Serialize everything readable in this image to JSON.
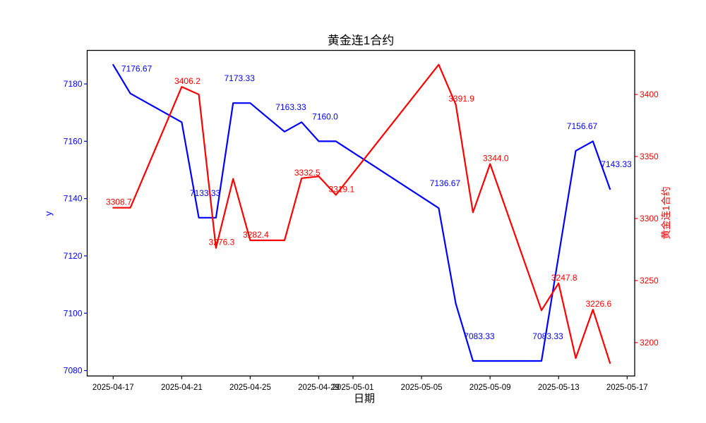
{
  "chart_data": {
    "type": "line",
    "title": "黄金连1合约",
    "xlabel": "日期",
    "grid": false,
    "legend_position": "none",
    "x_tick_labels": [
      "2025-04-17",
      "2025-04-21",
      "2025-04-25",
      "2025-04-29",
      "2025-05-01",
      "2025-05-05",
      "2025-05-09",
      "2025-05-13",
      "2025-05-17"
    ],
    "left_axis": {
      "label": "y",
      "color": "#0000ff",
      "ticks": [
        7180,
        7160,
        7140,
        7120,
        7100,
        7080
      ],
      "range": [
        7078.1,
        7191.7
      ]
    },
    "right_axis": {
      "label": "黄金连1合约",
      "color": "#ff0000",
      "ticks": [
        3400,
        3350,
        3300,
        3250,
        3200
      ],
      "range": [
        3173.1,
        3435.5
      ]
    },
    "series": [
      {
        "name": "y",
        "axis": "left",
        "color": "#0000ff",
        "points": [
          {
            "date": "2025-04-17",
            "value": 7186.67,
            "label": null
          },
          {
            "date": "2025-04-18",
            "value": 7176.67,
            "label": "7176.67"
          },
          {
            "date": "2025-04-21",
            "value": 7166.67,
            "label": null
          },
          {
            "date": "2025-04-22",
            "value": 7133.33,
            "label": "7133.33"
          },
          {
            "date": "2025-04-23",
            "value": 7133.33,
            "label": null
          },
          {
            "date": "2025-04-24",
            "value": 7173.33,
            "label": "7173.33"
          },
          {
            "date": "2025-04-25",
            "value": 7173.33,
            "label": null
          },
          {
            "date": "2025-04-27",
            "value": 7163.33,
            "label": "7163.33"
          },
          {
            "date": "2025-04-28",
            "value": 7166.67,
            "label": null
          },
          {
            "date": "2025-04-29",
            "value": 7160.0,
            "label": "7160.0"
          },
          {
            "date": "2025-04-30",
            "value": 7160.0,
            "label": null
          },
          {
            "date": "2025-05-06",
            "value": 7136.67,
            "label": "7136.67"
          },
          {
            "date": "2025-05-07",
            "value": 7103.33,
            "label": null
          },
          {
            "date": "2025-05-08",
            "value": 7083.33,
            "label": "7083.33"
          },
          {
            "date": "2025-05-09",
            "value": 7083.33,
            "label": null
          },
          {
            "date": "2025-05-12",
            "value": 7083.33,
            "label": "7083.33"
          },
          {
            "date": "2025-05-13",
            "value": 7120.0,
            "label": null
          },
          {
            "date": "2025-05-14",
            "value": 7156.67,
            "label": "7156.67"
          },
          {
            "date": "2025-05-15",
            "value": 7160.0,
            "label": null
          },
          {
            "date": "2025-05-16",
            "value": 7143.33,
            "label": "7143.33"
          }
        ]
      },
      {
        "name": "黄金连1合约",
        "axis": "right",
        "color": "#ff0000",
        "points": [
          {
            "date": "2025-04-17",
            "value": 3308.7,
            "label": "3308.7"
          },
          {
            "date": "2025-04-18",
            "value": 3308.7,
            "label": null
          },
          {
            "date": "2025-04-21",
            "value": 3406.2,
            "label": "3406.2"
          },
          {
            "date": "2025-04-22",
            "value": 3400.0,
            "label": null
          },
          {
            "date": "2025-04-23",
            "value": 3276.3,
            "label": "3276.3"
          },
          {
            "date": "2025-04-24",
            "value": 3332.0,
            "label": null
          },
          {
            "date": "2025-04-25",
            "value": 3282.4,
            "label": "3282.4"
          },
          {
            "date": "2025-04-27",
            "value": 3282.4,
            "label": null
          },
          {
            "date": "2025-04-28",
            "value": 3332.5,
            "label": "3332.5"
          },
          {
            "date": "2025-04-29",
            "value": 3334.0,
            "label": null
          },
          {
            "date": "2025-04-30",
            "value": 3319.1,
            "label": "3319.1"
          },
          {
            "date": "2025-05-06",
            "value": 3424.0,
            "label": null
          },
          {
            "date": "2025-05-07",
            "value": 3391.9,
            "label": "3391.9"
          },
          {
            "date": "2025-05-08",
            "value": 3305.0,
            "label": null
          },
          {
            "date": "2025-05-09",
            "value": 3344.0,
            "label": "3344.0"
          },
          {
            "date": "2025-05-12",
            "value": 3226.0,
            "label": null
          },
          {
            "date": "2025-05-13",
            "value": 3247.8,
            "label": "3247.8"
          },
          {
            "date": "2025-05-14",
            "value": 3187.5,
            "label": null
          },
          {
            "date": "2025-05-15",
            "value": 3226.6,
            "label": "3226.6"
          },
          {
            "date": "2025-05-16",
            "value": 3183.5,
            "label": null
          }
        ]
      }
    ]
  }
}
